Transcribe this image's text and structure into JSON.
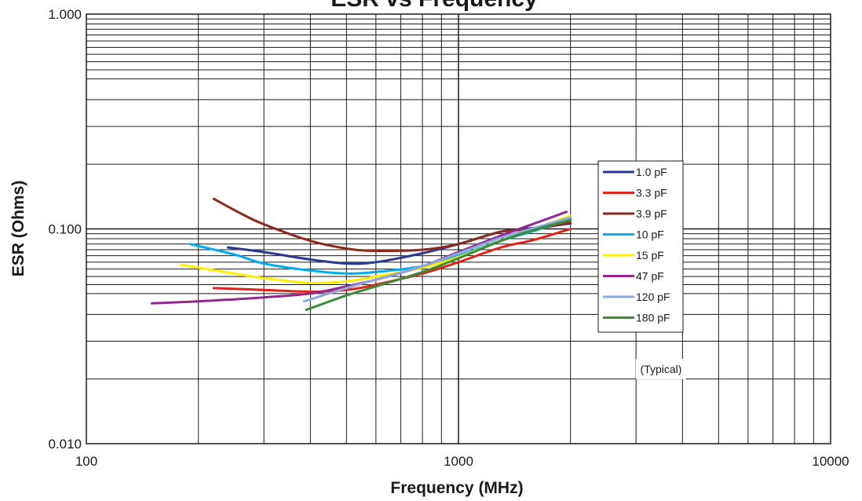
{
  "chart_data": {
    "type": "line",
    "title": "ESR vs Frequency",
    "xlabel": "Frequency (MHz)",
    "ylabel": "ESR (Ohms)",
    "x_scale": "log",
    "y_scale": "log",
    "xlim": [
      100,
      10000
    ],
    "ylim": [
      0.01,
      1.0
    ],
    "x_ticks": [
      "100",
      "1000",
      "10000"
    ],
    "y_ticks": [
      "0.010",
      "0.100",
      "1.000"
    ],
    "grid": true,
    "legend_position": "right",
    "annotation": "(Typical)",
    "series": [
      {
        "name": "1.0 pF",
        "color": "#2b3990",
        "x": [
          240,
          300,
          400,
          500,
          600,
          800,
          1000,
          1300,
          1600,
          2000
        ],
        "y": [
          0.082,
          0.078,
          0.072,
          0.069,
          0.07,
          0.077,
          0.085,
          0.097,
          0.101,
          0.106
        ]
      },
      {
        "name": "3.3 pF",
        "color": "#e2231a",
        "x": [
          220,
          300,
          400,
          500,
          600,
          800,
          1000,
          1300,
          1600,
          2000
        ],
        "y": [
          0.053,
          0.052,
          0.051,
          0.052,
          0.055,
          0.062,
          0.07,
          0.082,
          0.089,
          0.1
        ]
      },
      {
        "name": "3.9 pF",
        "color": "#8b2a1f",
        "x": [
          220,
          260,
          300,
          400,
          500,
          600,
          800,
          1000,
          1300,
          1600,
          2000
        ],
        "y": [
          0.138,
          0.118,
          0.105,
          0.088,
          0.081,
          0.079,
          0.08,
          0.085,
          0.097,
          0.1,
          0.107
        ]
      },
      {
        "name": "10 pF",
        "color": "#00aeef",
        "x": [
          190,
          250,
          300,
          400,
          500,
          600,
          800,
          1000,
          1300,
          1600,
          2000
        ],
        "y": [
          0.085,
          0.076,
          0.069,
          0.064,
          0.062,
          0.063,
          0.067,
          0.075,
          0.088,
          0.098,
          0.111
        ]
      },
      {
        "name": "15 pF",
        "color": "#ffee00",
        "x": [
          180,
          250,
          300,
          400,
          500,
          600,
          800,
          1000,
          1300,
          1600,
          2000
        ],
        "y": [
          0.068,
          0.062,
          0.059,
          0.056,
          0.057,
          0.06,
          0.066,
          0.074,
          0.088,
          0.1,
          0.115
        ]
      },
      {
        "name": "47 pF",
        "color": "#92278f",
        "x": [
          150,
          200,
          250,
          300,
          400,
          500,
          600,
          800,
          1000,
          1300,
          1600,
          1950
        ],
        "y": [
          0.045,
          0.046,
          0.047,
          0.048,
          0.05,
          0.054,
          0.058,
          0.067,
          0.078,
          0.093,
          0.106,
          0.12
        ]
      },
      {
        "name": "120 pF",
        "color": "#8da9db",
        "x": [
          385,
          500,
          600,
          800,
          1000,
          1300,
          1600,
          2000
        ],
        "y": [
          0.046,
          0.053,
          0.058,
          0.067,
          0.077,
          0.091,
          0.101,
          0.113
        ]
      },
      {
        "name": "180 pF",
        "color": "#3d8b37",
        "x": [
          390,
          500,
          600,
          800,
          1000,
          1300,
          1600,
          2000
        ],
        "y": [
          0.042,
          0.049,
          0.054,
          0.063,
          0.073,
          0.088,
          0.099,
          0.11
        ]
      }
    ]
  }
}
